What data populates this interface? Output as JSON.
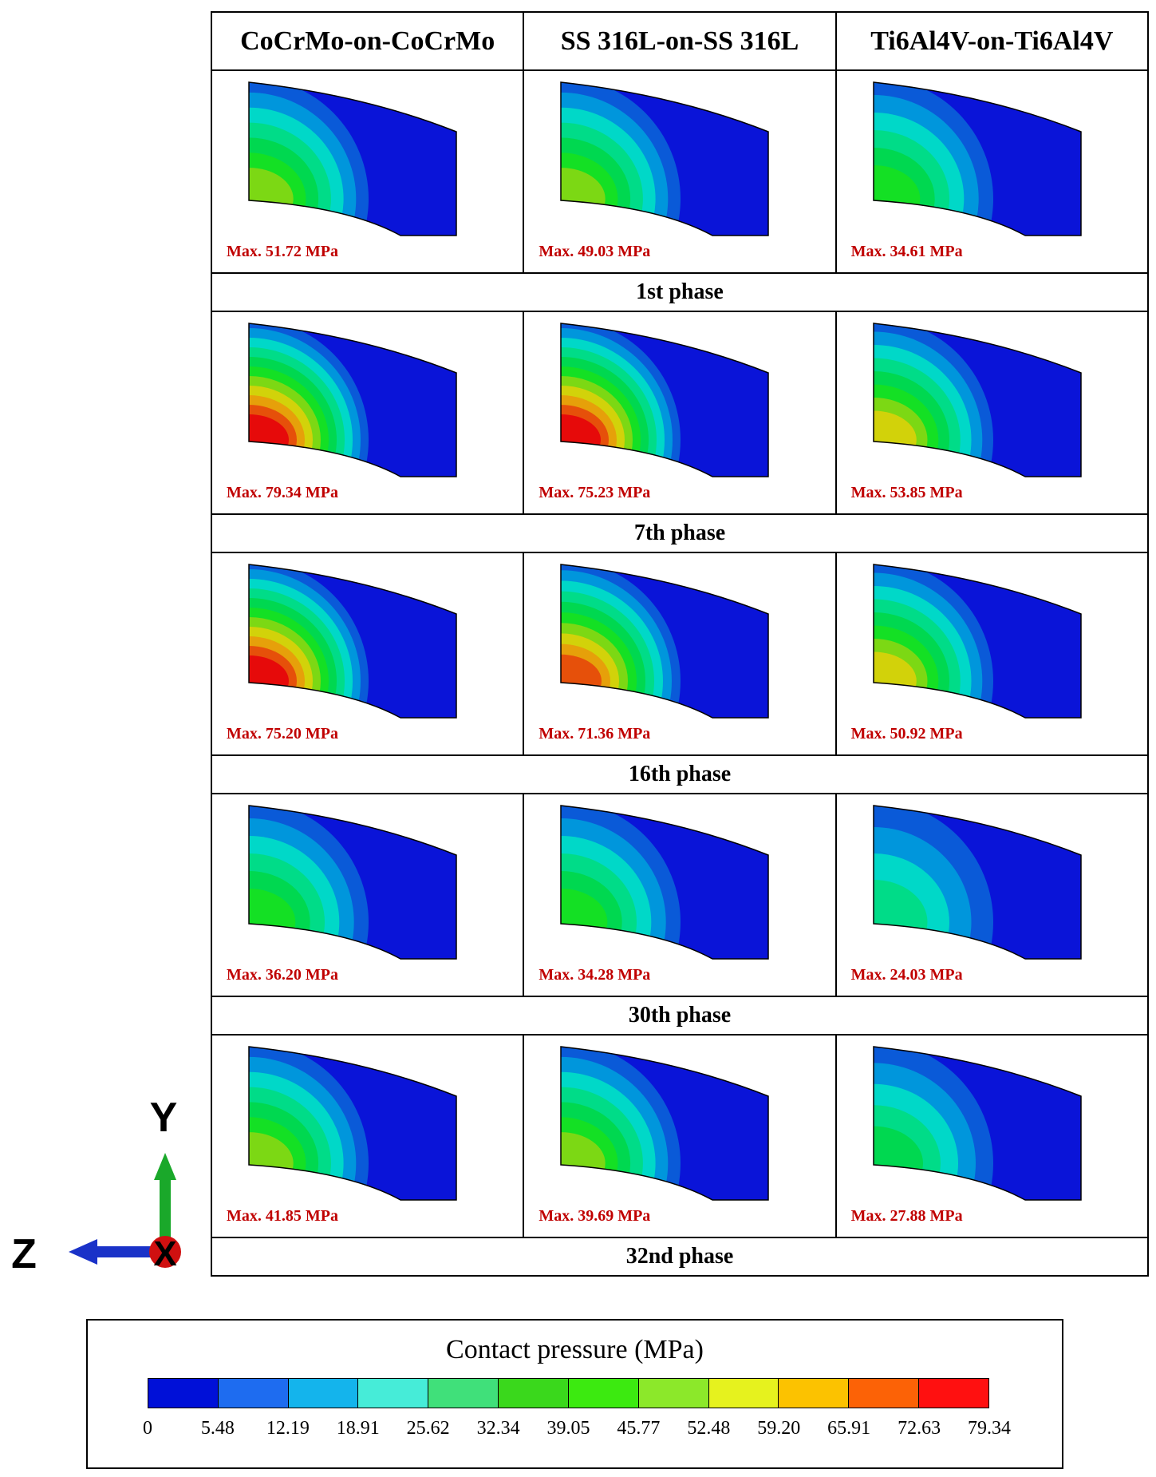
{
  "headers": [
    "CoCrMo-on-CoCrMo",
    "SS 316L-on-SS 316L",
    "Ti6Al4V-on-Ti6Al4V"
  ],
  "rows": [
    {
      "phase": "",
      "max": [
        "Max. 51.72 MPa",
        "Max. 49.03 MPa",
        "Max. 34.61 MPa"
      ]
    },
    {
      "phase": "1st phase",
      "max": [
        "Max. 79.34 MPa",
        "Max. 75.23 MPa",
        "Max. 53.85 MPa"
      ]
    },
    {
      "phase": "7th phase",
      "max": [
        "Max. 75.20 MPa",
        "Max. 71.36 MPa",
        "Max. 50.92 MPa"
      ]
    },
    {
      "phase": "16th phase",
      "max": [
        "Max. 36.20 MPa",
        "Max. 34.28 MPa",
        "Max. 24.03 MPa"
      ]
    },
    {
      "phase": "30th phase",
      "max": [
        "Max. 41.85 MPa",
        "Max. 39.69 MPa",
        "Max. 27.88 MPa"
      ]
    },
    {
      "phase": "32nd phase"
    }
  ],
  "axes": {
    "y": "Y",
    "z": "Z",
    "x": "X"
  },
  "legend": {
    "title": "Contact pressure (MPa)",
    "ticks": [
      "0",
      "5.48",
      "12.19",
      "18.91",
      "25.62",
      "32.34",
      "39.05",
      "45.77",
      "52.48",
      "59.20",
      "65.91",
      "72.63",
      "79.34"
    ],
    "colors": [
      "#0010d8",
      "#1e6cf0",
      "#14b4ec",
      "#46ecd8",
      "#40e07a",
      "#3ad81c",
      "#3cea10",
      "#8ce82a",
      "#e6f21e",
      "#fcc200",
      "#fc6206",
      "#ff1010"
    ]
  },
  "contour_palette": [
    "#0a14d8",
    "#0a5ad8",
    "#0096dc",
    "#00d8c8",
    "#00dc88",
    "#00d850",
    "#14e024",
    "#7cd814",
    "#d2d20a",
    "#e6a00a",
    "#e6500a",
    "#e60a0a"
  ],
  "contour_levels": [
    [
      7,
      7,
      6
    ],
    [
      11,
      11,
      8
    ],
    [
      11,
      10,
      8
    ],
    [
      6,
      6,
      4
    ],
    [
      7,
      7,
      5
    ]
  ]
}
